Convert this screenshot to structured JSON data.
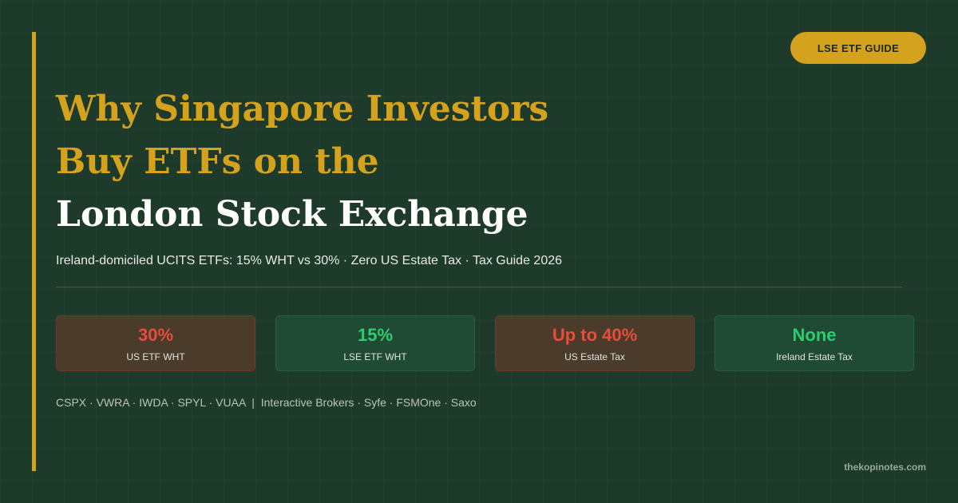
{
  "badge": "LSE ETF GUIDE",
  "title": {
    "lines": [
      {
        "text": "Why Singapore Investors",
        "color": "#d4a21c"
      },
      {
        "text": "Buy ETFs on the",
        "color": "#d4a21c"
      },
      {
        "text": "London Stock Exchange",
        "color": "#ffffff"
      }
    ]
  },
  "subtitle": "Ireland-domiciled UCITS ETFs: 15% WHT vs 30% · Zero US Estate Tax · Tax Guide 2026",
  "stats": [
    {
      "value": "30%",
      "label": "US ETF WHT",
      "color": "#e74c3c",
      "background": "#4a3b2b",
      "border": "#6e3a2c"
    },
    {
      "value": "15%",
      "label": "LSE ETF WHT",
      "color": "#2ecc71",
      "background": "#1f4a34",
      "border": "#2c5c42"
    },
    {
      "value": "Up to 40%",
      "label": "US Estate Tax",
      "color": "#e74c3c",
      "background": "#4a3b2b",
      "border": "#6e3a2c"
    },
    {
      "value": "None",
      "label": "Ireland Estate Tax",
      "color": "#2ecc71",
      "background": "#1f4a34",
      "border": "#2c5c42"
    }
  ],
  "footer": "CSPX · VWRA · IWDA · SPYL · VUAA  |  Interactive Brokers · Syfe · FSMOne · Saxo",
  "site": "thekopinotes.com"
}
